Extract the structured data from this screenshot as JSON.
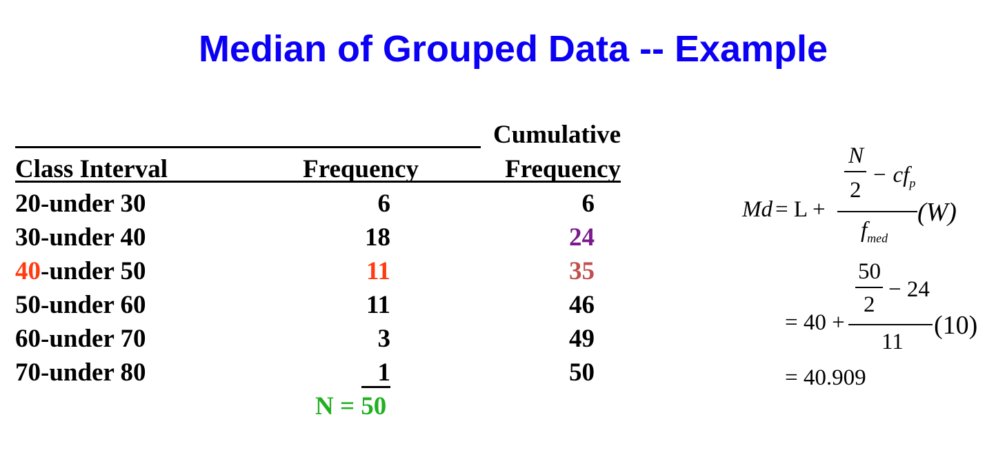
{
  "title": "Median of Grouped Data -- Example",
  "colors": {
    "title": "#0b00f5",
    "highlight_red": "#ff3b10",
    "highlight_purple": "#7b1a8c",
    "highlight_brown": "#c0504d",
    "total_green": "#22b022"
  },
  "table": {
    "header_top": {
      "cumulative": "Cumulative"
    },
    "headers": [
      "Class Interval",
      "Frequency",
      "Frequency"
    ],
    "rows": [
      {
        "interval_start": "20",
        "interval_rest": "-under 30",
        "frequency": "6",
        "cumulative": "6"
      },
      {
        "interval_start": "30",
        "interval_rest": "-under 40",
        "frequency": "18",
        "cumulative": "24"
      },
      {
        "interval_start": "40",
        "interval_rest": "-under 50",
        "frequency": "11",
        "cumulative": "35"
      },
      {
        "interval_start": "50",
        "interval_rest": "-under 60",
        "frequency": "11",
        "cumulative": "46"
      },
      {
        "interval_start": "60",
        "interval_rest": "-under 70",
        "frequency": "3",
        "cumulative": "49"
      },
      {
        "interval_start": "70",
        "interval_rest": "-under 80",
        "frequency": "1",
        "cumulative": "50"
      }
    ],
    "total": "N = 50"
  },
  "formula": {
    "lhs": "Md",
    "eq_L_plus": "= L +",
    "num_top": "N",
    "num_den": "2",
    "minus_cfp": "− cf",
    "cfp_sub": "p",
    "den": "f",
    "den_sub": "med",
    "width": "(W)",
    "step2_prefix": "= 40 +",
    "step2_num_top": "50",
    "step2_num_den": "2",
    "step2_minus": "− 24",
    "step2_den": "11",
    "step2_width": "(10)",
    "result": "= 40.909"
  }
}
